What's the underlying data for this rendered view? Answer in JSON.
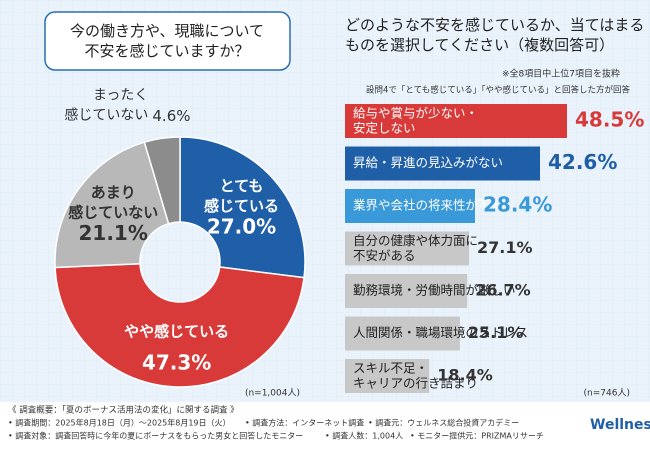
{
  "chart_data": [
    {
      "type": "donut",
      "title": "今の働き方や、現職について\n不安を感じていますか？",
      "categories": [
        "とても\n感じている",
        "やや感じている",
        "あまり\n感じていない",
        "まったく\n感じていない"
      ],
      "values": [
        27.0,
        47.3,
        21.1,
        4.6
      ],
      "value_labels": [
        "27.0%",
        "47.3%",
        "21.1%",
        "4.6%"
      ],
      "colors": [
        "#1f5fa8",
        "#d83a3a",
        "#b8b8b8",
        "#8c8c8c"
      ],
      "note": "(n=1,004人)"
    },
    {
      "type": "hbar",
      "title": "どのような不安を感じているか、当てはまる\nものを選択してください（複数回答可）",
      "subtitle": "※全8項目中上位7項目を抜粋",
      "annotation": "設問4で「とても感じている」「やや感じている」と回答した方が回答",
      "categories": [
        "給与や賞与が少ない・\n安定しない",
        "昇給・昇進の見込みがない",
        "業界や会社の将来性が不安",
        "自分の健康や体力面に\n不安がある",
        "勤務環境・労働時間が厳しい",
        "人間関係・職場環境のストレス",
        "スキル不足・\nキャリアの行き詰まり"
      ],
      "values": [
        48.5,
        42.6,
        28.4,
        27.1,
        26.7,
        25.1,
        18.4
      ],
      "value_labels": [
        "48.5%",
        "42.6%",
        "28.4%",
        "27.1%",
        "26.7%",
        "25.1%",
        "18.4%"
      ],
      "colors": [
        "#d83a3a",
        "#1f5fa8",
        "#3a9ad9",
        "#c8c8c8",
        "#c8c8c8",
        "#c8c8c8",
        "#c8c8c8"
      ],
      "note": "(n=746人)"
    }
  ],
  "footer": {
    "heading": "《 調査概要：「夏のボーナス活用法の変化」に関する調査 》",
    "items": [
      "• 調査期間：2025年8月18日（月）〜2025年8月19日（火）",
      "• 調査方法：インターネット調査",
      "• 調査元：ウェルネス総合投資アカデミー",
      "• 調査対象：調査回答時に今年の夏にボーナスをもらった男女と回答したモニター",
      "• 調査人数：1,004人",
      "• モニター提供元：PRIZMAリサーチ"
    ],
    "logo": "Wellness"
  }
}
